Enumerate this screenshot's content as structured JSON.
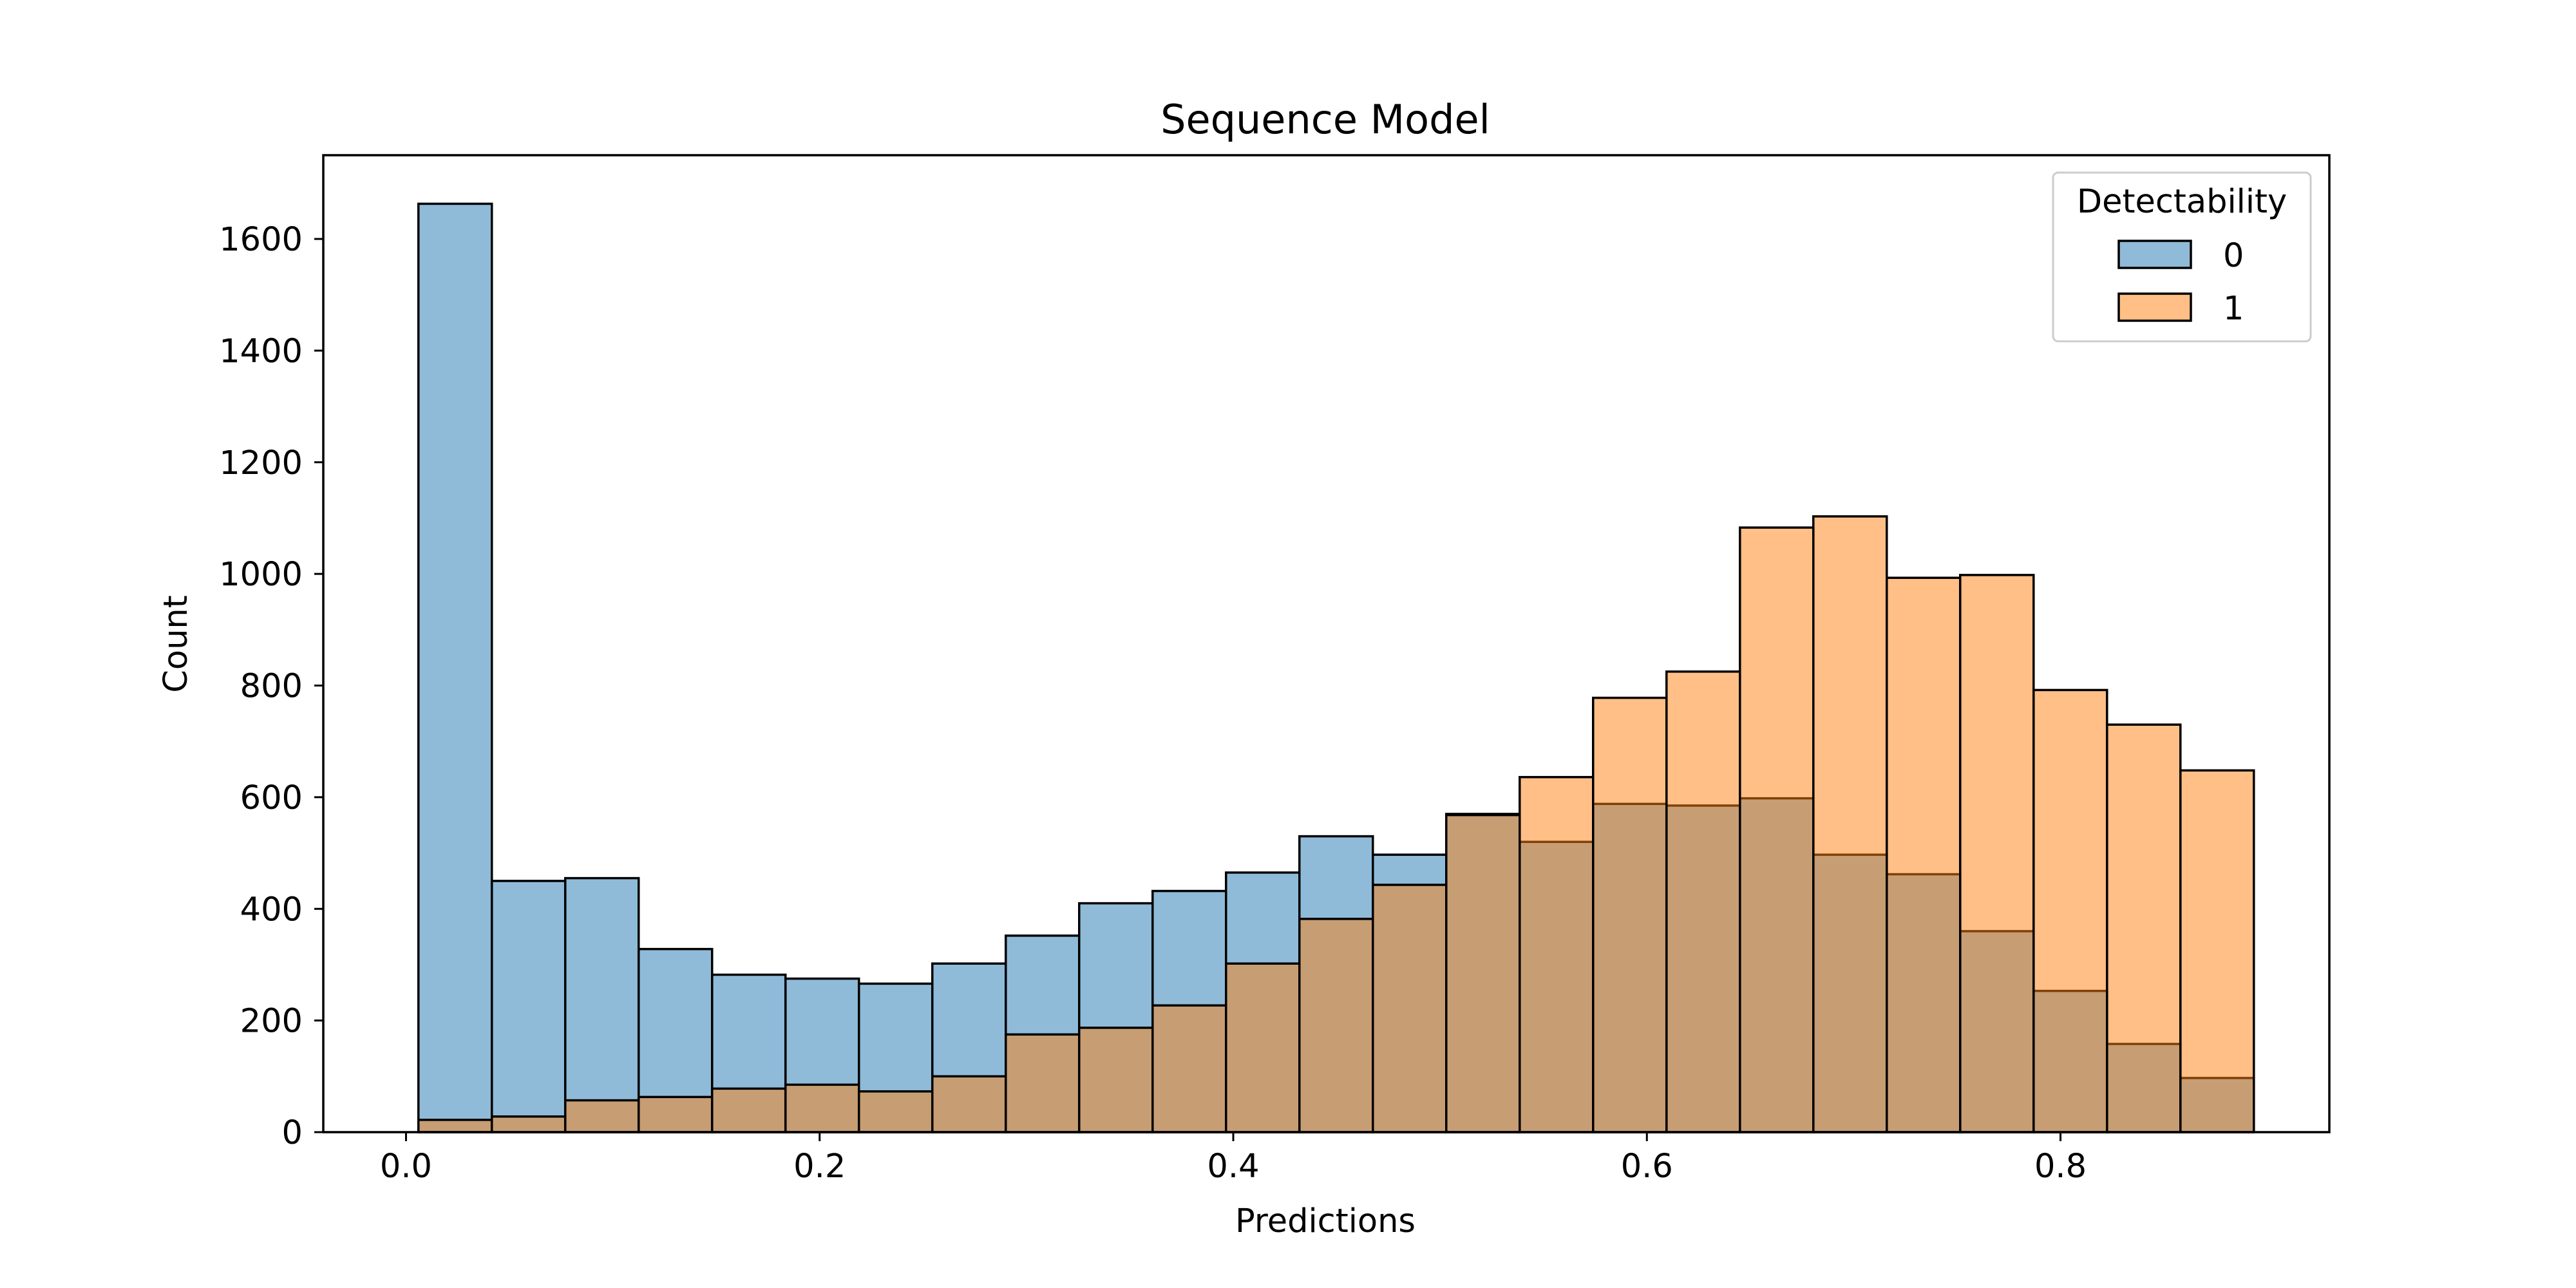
{
  "chart_data": {
    "type": "bar",
    "title": "Sequence Model",
    "xlabel": "Predictions",
    "ylabel": "Count",
    "xlim": [
      -0.04,
      0.93
    ],
    "ylim": [
      0,
      1750
    ],
    "x_ticks": [
      0.0,
      0.2,
      0.4,
      0.6,
      0.8
    ],
    "x_tick_labels": [
      "0.0",
      "0.2",
      "0.4",
      "0.6",
      "0.8"
    ],
    "y_ticks": [
      0,
      200,
      400,
      600,
      800,
      1000,
      1200,
      1400,
      1600
    ],
    "y_tick_labels": [
      "0",
      "200",
      "400",
      "600",
      "800",
      "1000",
      "1200",
      "1400",
      "1600"
    ],
    "bin_edges": [
      0.006,
      0.0415,
      0.077,
      0.1125,
      0.148,
      0.1835,
      0.219,
      0.2545,
      0.29,
      0.3255,
      0.361,
      0.3965,
      0.432,
      0.4675,
      0.503,
      0.5385,
      0.574,
      0.6095,
      0.645,
      0.6805,
      0.716,
      0.7515,
      0.787,
      0.8225,
      0.858,
      0.8935
    ],
    "legend": {
      "title": "Detectability",
      "placement": "top-right",
      "entries": [
        "0",
        "1"
      ]
    },
    "series": [
      {
        "name": "0",
        "color": "#1f77b4",
        "values": [
          1663,
          450,
          455,
          328,
          282,
          275,
          266,
          302,
          352,
          410,
          432,
          465,
          530,
          497,
          570,
          520,
          588,
          585,
          598,
          497,
          462,
          360,
          253,
          158,
          97
        ]
      },
      {
        "name": "1",
        "color": "#ff7f0e",
        "values": [
          22,
          28,
          57,
          63,
          78,
          85,
          73,
          100,
          175,
          187,
          227,
          302,
          382,
          443,
          568,
          636,
          778,
          825,
          1083,
          1103,
          993,
          998,
          792,
          730,
          648
        ]
      }
    ],
    "grid": false
  }
}
